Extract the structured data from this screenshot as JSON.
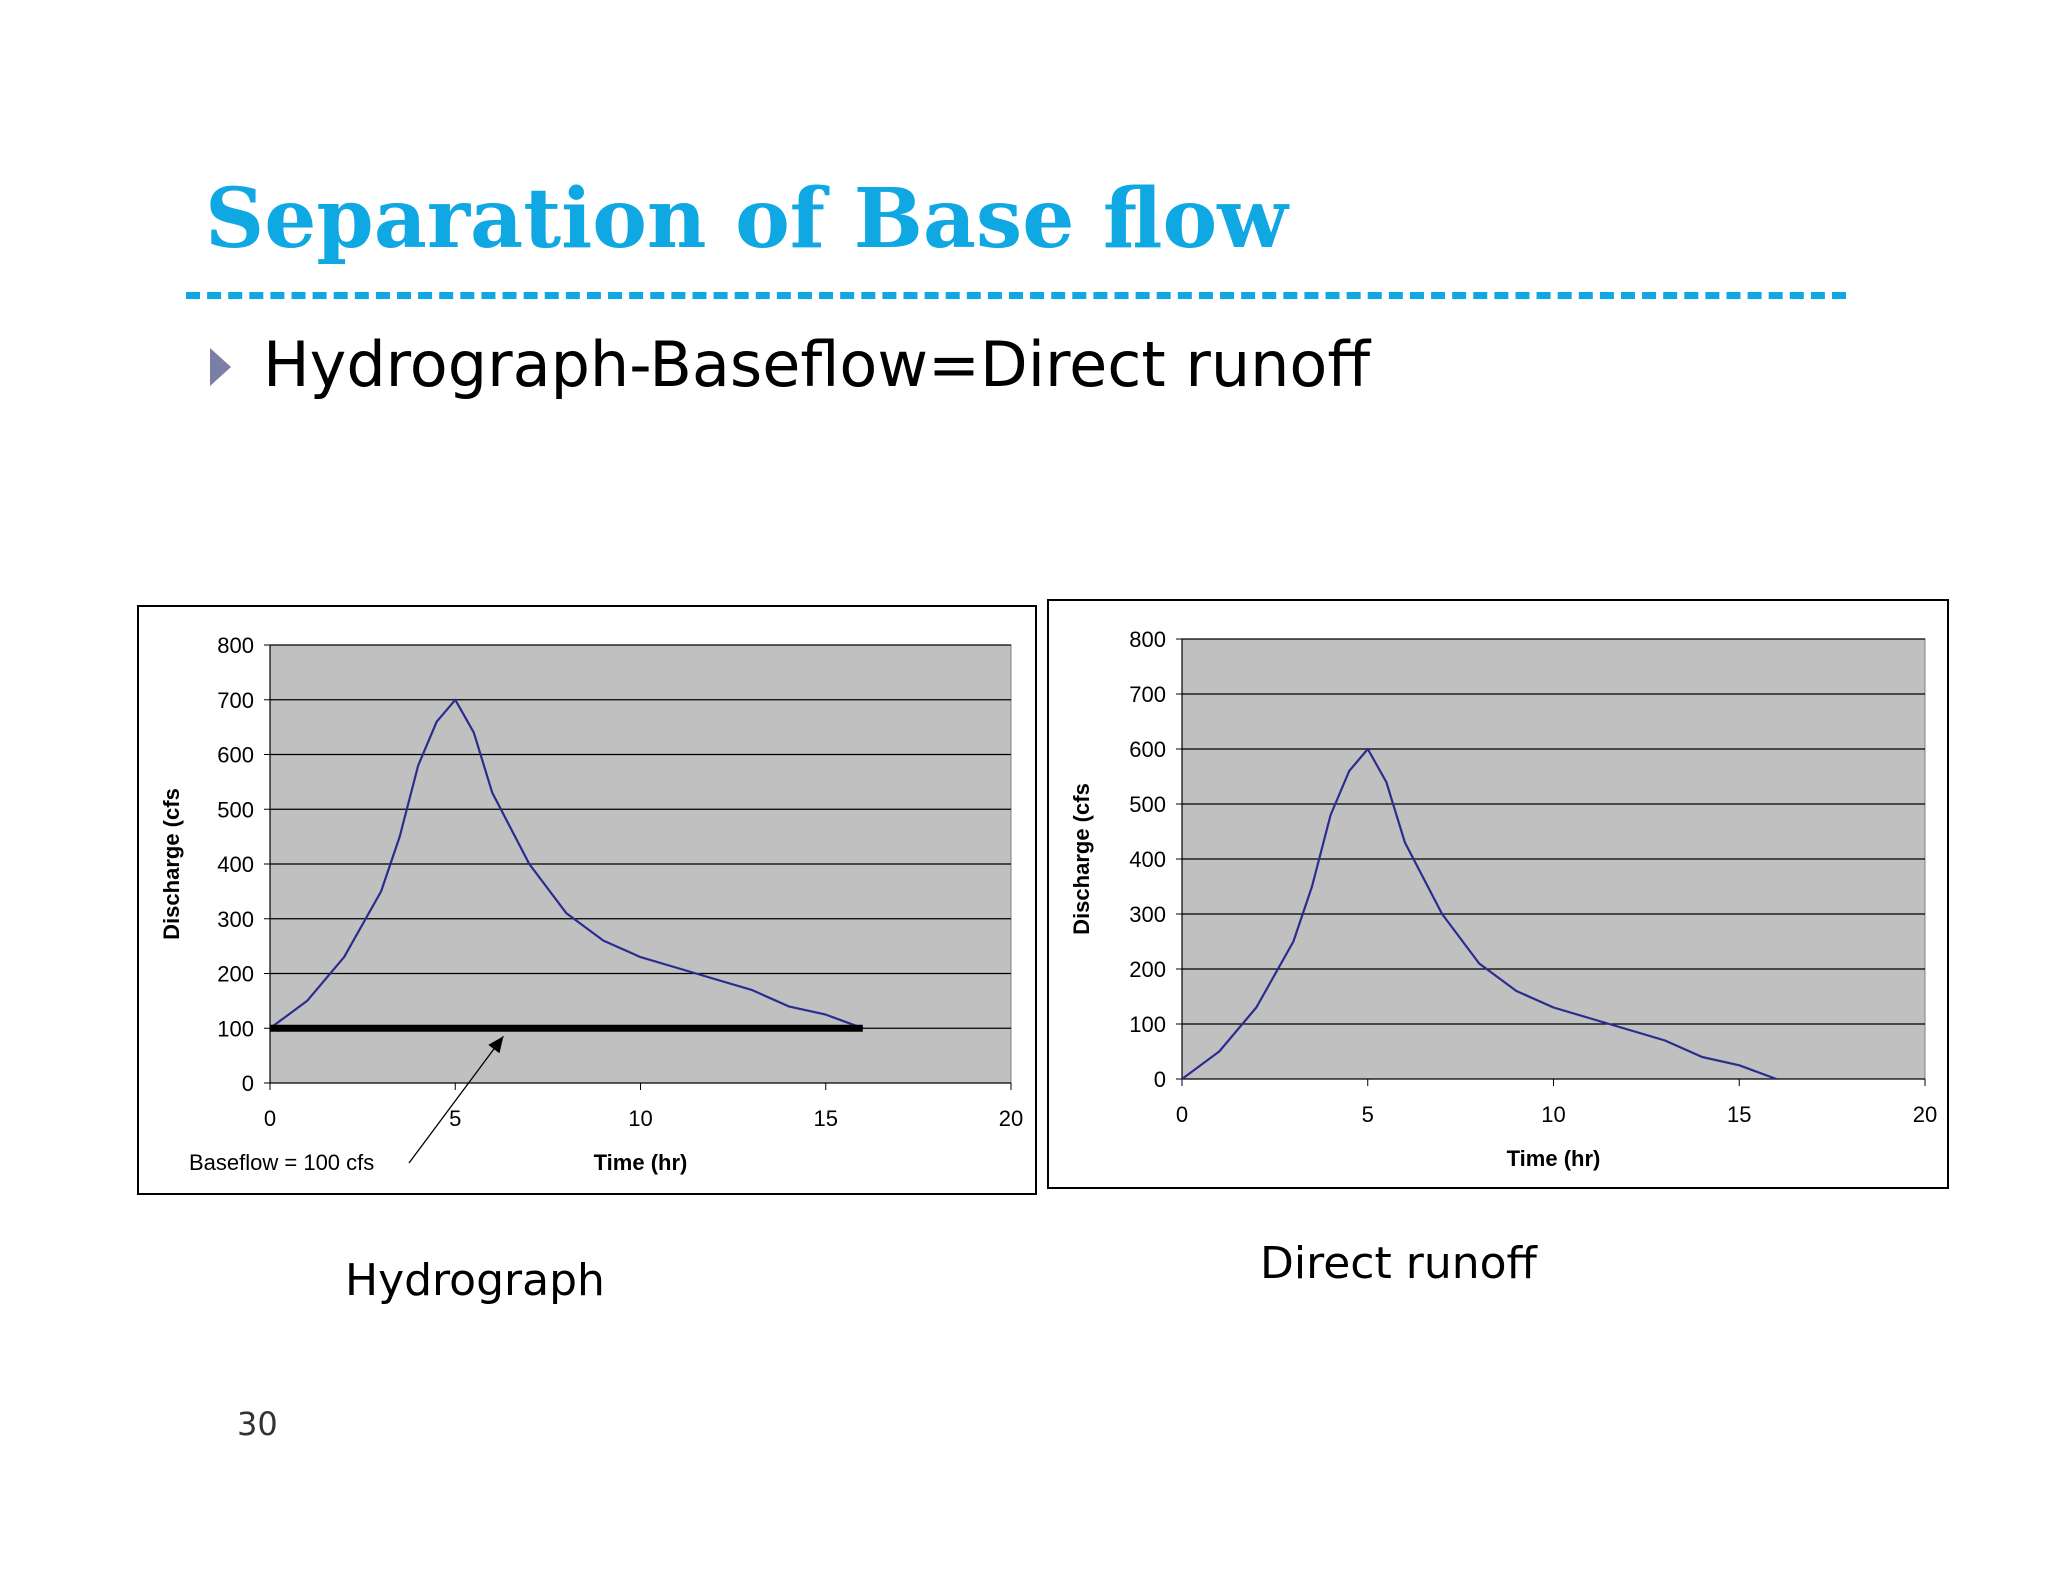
{
  "slide": {
    "title": "Separation of Base flow",
    "bullet": "Hydrograph-Baseflow=Direct runoff",
    "page_number": "30",
    "accent_color": "#0fa8e2",
    "bullet_color": "#7a7fa6"
  },
  "captions": {
    "left": "Hydrograph",
    "right": "Direct runoff"
  },
  "chart_data": [
    {
      "type": "line",
      "title": "",
      "xlabel": "Time (hr)",
      "ylabel": "Discharge (cfs",
      "xlim": [
        0,
        20
      ],
      "ylim": [
        0,
        800
      ],
      "xticks": [
        0,
        5,
        10,
        15,
        20
      ],
      "yticks": [
        0,
        100,
        200,
        300,
        400,
        500,
        600,
        700,
        800
      ],
      "grid": "horizontal",
      "plot_background": "#c0c0c0",
      "line_color": "#2b2d8e",
      "series": [
        {
          "x": [
            0,
            1,
            2,
            3,
            3.5,
            4,
            4.5,
            5,
            5.5,
            6,
            7,
            8,
            9,
            10,
            11,
            12,
            13,
            14,
            15,
            16
          ],
          "y": [
            100,
            150,
            230,
            350,
            450,
            580,
            660,
            700,
            640,
            530,
            400,
            310,
            260,
            230,
            210,
            190,
            170,
            140,
            125,
            100
          ]
        }
      ],
      "baseline": {
        "y": 100,
        "x": [
          0,
          16
        ],
        "color": "#000000"
      },
      "annotation": {
        "text": "Baseflow = 100 cfs",
        "x": 6.3,
        "y": 100
      }
    },
    {
      "type": "line",
      "title": "",
      "xlabel": "Time (hr)",
      "ylabel": "Discharge (cfs",
      "xlim": [
        0,
        20
      ],
      "ylim": [
        0,
        800
      ],
      "xticks": [
        0,
        5,
        10,
        15,
        20
      ],
      "yticks": [
        0,
        100,
        200,
        300,
        400,
        500,
        600,
        700,
        800
      ],
      "grid": "horizontal",
      "plot_background": "#c0c0c0",
      "line_color": "#2b2d8e",
      "series": [
        {
          "x": [
            0,
            1,
            2,
            3,
            3.5,
            4,
            4.5,
            5,
            5.5,
            6,
            7,
            8,
            9,
            10,
            11,
            12,
            13,
            14,
            15,
            16
          ],
          "y": [
            0,
            50,
            130,
            250,
            350,
            480,
            560,
            600,
            540,
            430,
            300,
            210,
            160,
            130,
            110,
            90,
            70,
            40,
            25,
            0
          ]
        }
      ]
    }
  ]
}
